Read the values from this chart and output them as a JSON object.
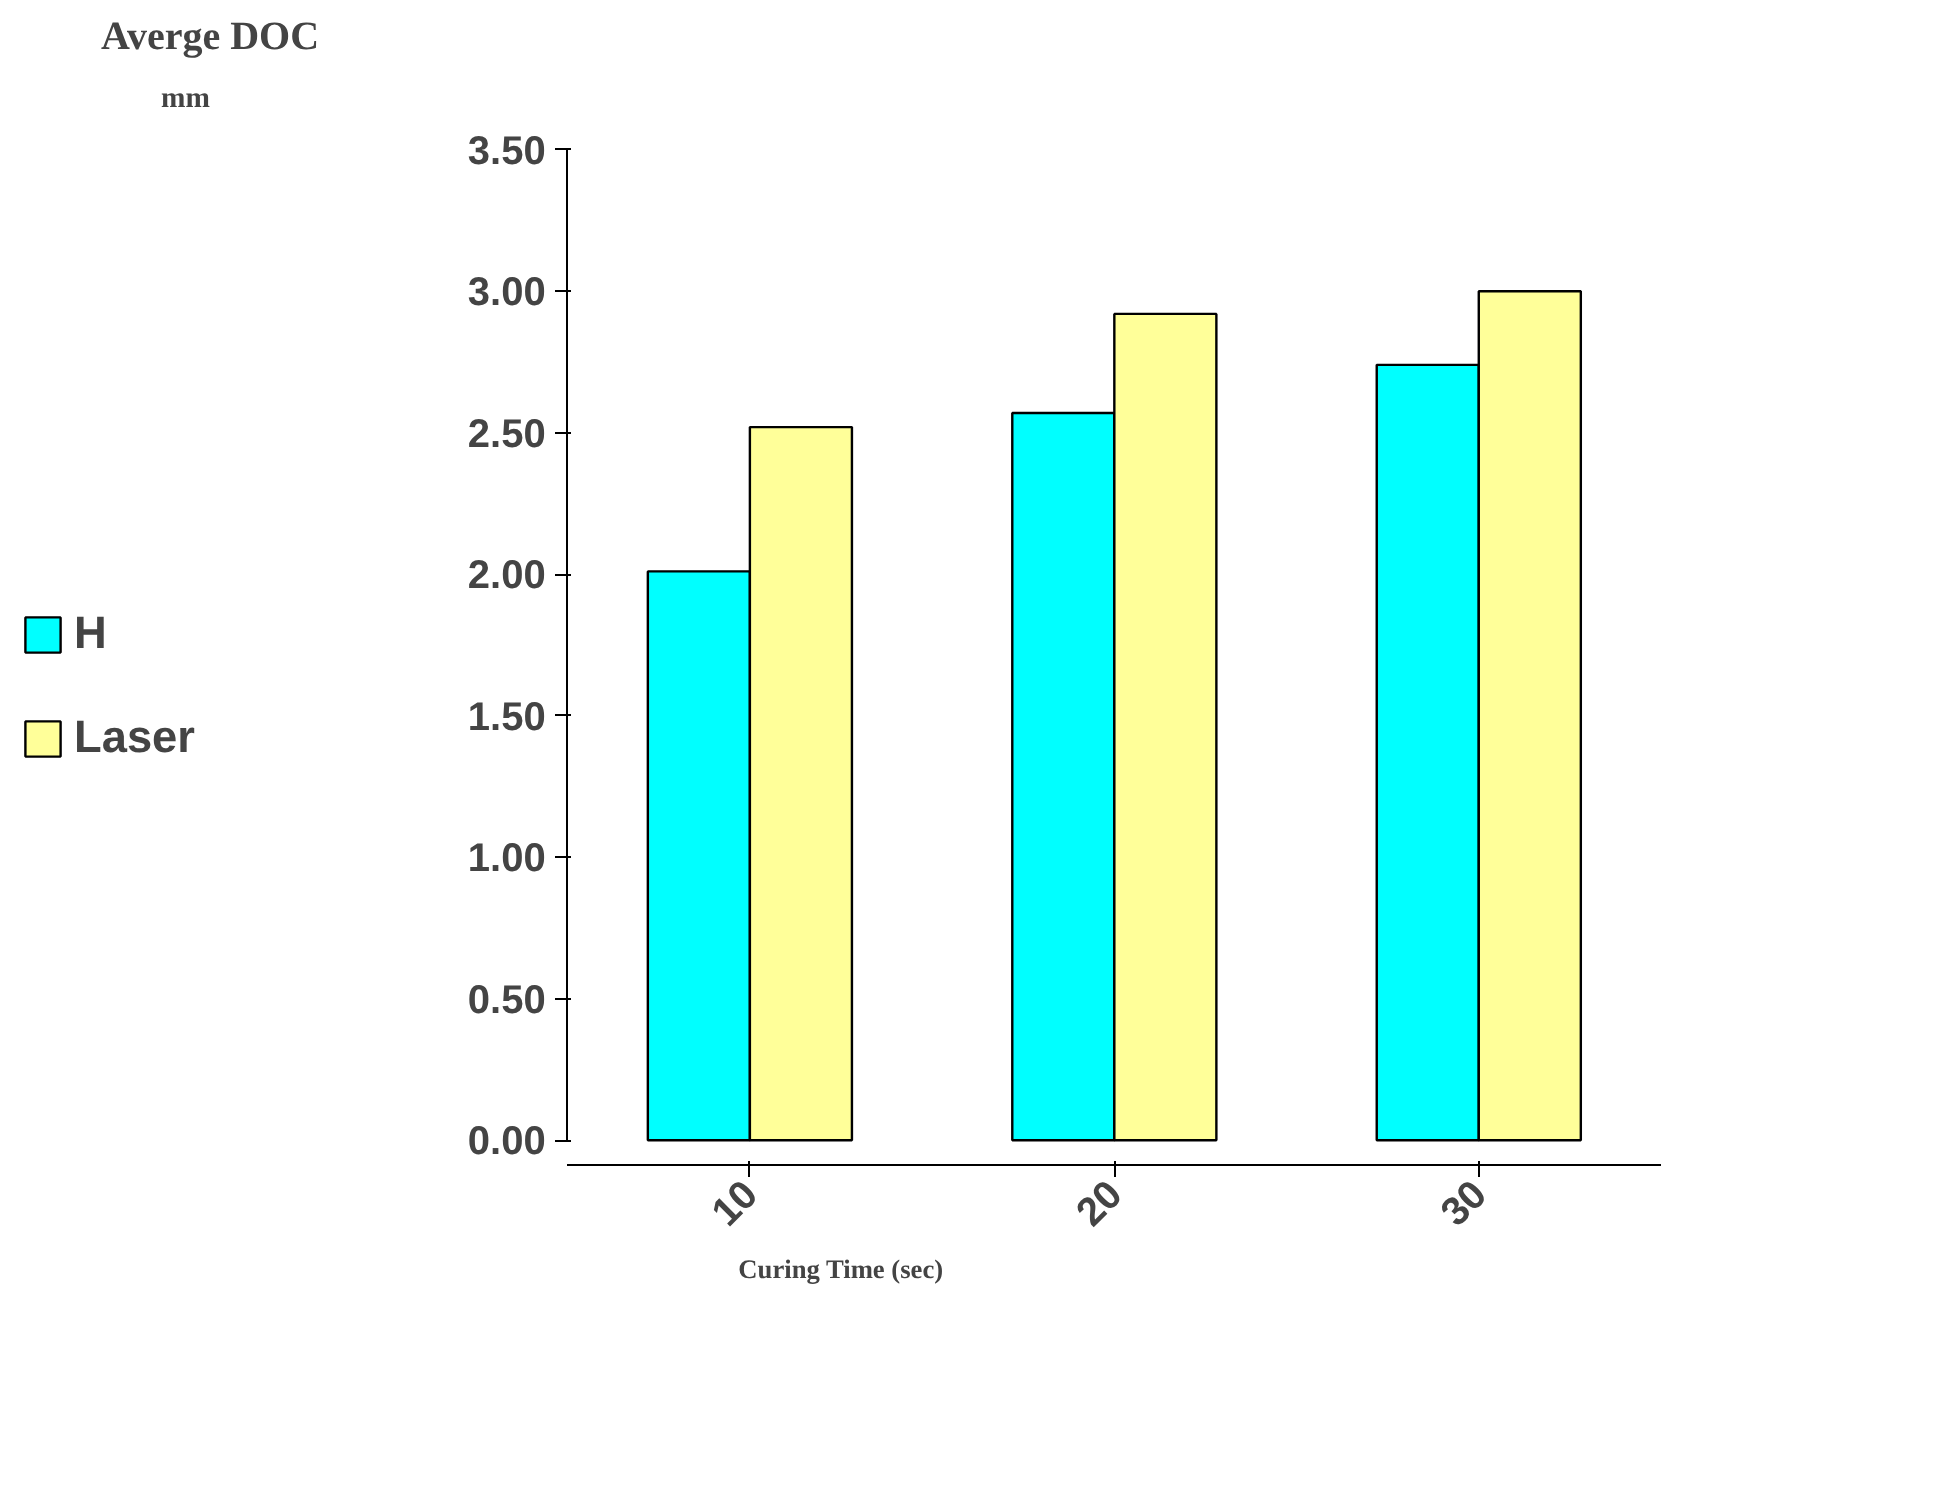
{
  "chart_data": {
    "type": "bar",
    "title": "Averge DOC",
    "subtitle": "mm",
    "xlabel": "Curing Time (sec)",
    "categories": [
      "10",
      "20",
      "30"
    ],
    "series": [
      {
        "name": "H",
        "color": "#00ffff",
        "values": [
          2.01,
          2.57,
          2.74
        ]
      },
      {
        "name": "Laser",
        "color": "#ffff99",
        "values": [
          2.52,
          2.92,
          3.0
        ]
      }
    ],
    "ylim": [
      0,
      3.5
    ],
    "yticks": [
      {
        "value": 0,
        "label": "0.00"
      },
      {
        "value": 0.5,
        "label": "0.50"
      },
      {
        "value": 1,
        "label": "1.00"
      },
      {
        "value": 1.5,
        "label": "1.50"
      },
      {
        "value": 2,
        "label": "2.00"
      },
      {
        "value": 2.5,
        "label": "2.50"
      },
      {
        "value": 3,
        "label": "3.00"
      },
      {
        "value": 3.5,
        "label": "3.50"
      }
    ],
    "grid": false,
    "legend": "left"
  }
}
